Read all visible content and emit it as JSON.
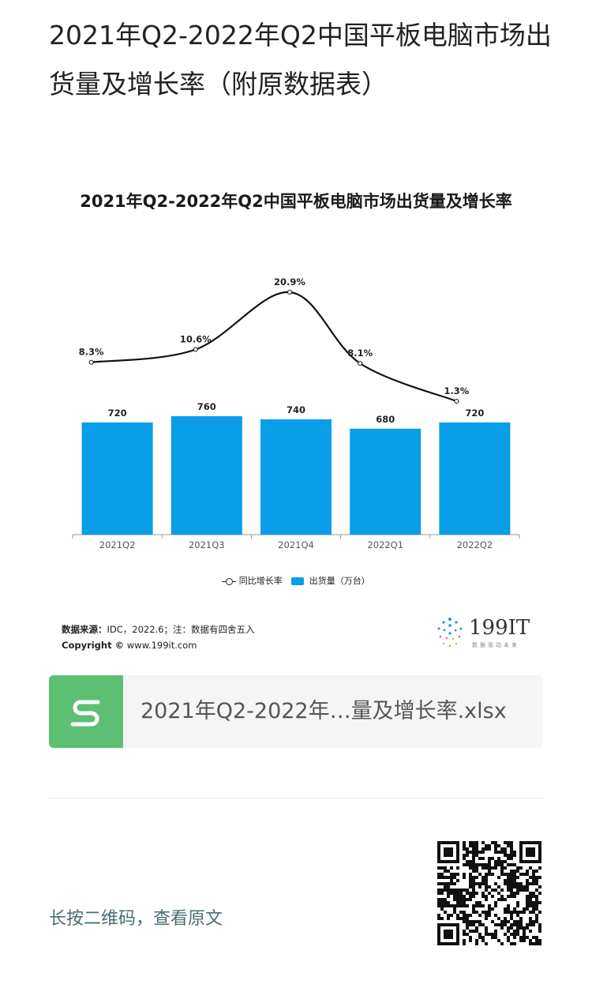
{
  "article": {
    "title": "2021年Q2-2022年Q2中国平板电脑市场出货量及增长率（附原数据表）"
  },
  "chart_data": {
    "type": "bar",
    "title": "2021年Q2-2022年Q2中国平板电脑市场出货量及增长率",
    "categories": [
      "2021Q2",
      "2021Q3",
      "2021Q4",
      "2022Q1",
      "2022Q2"
    ],
    "series": [
      {
        "name": "出货量（万台）",
        "type": "bar",
        "values": [
          720,
          760,
          740,
          680,
          720
        ],
        "labels": [
          "720",
          "760",
          "740",
          "680",
          "720"
        ],
        "color": "#0a9ee8"
      },
      {
        "name": "同比增长率",
        "type": "line",
        "values": [
          8.3,
          10.6,
          20.9,
          8.1,
          1.3
        ],
        "labels": [
          "8.3%",
          "10.6%",
          "20.9%",
          "8.1%",
          "1.3%"
        ],
        "color": "#111111"
      }
    ],
    "legend_position": "bottom-center",
    "grid": false
  },
  "source": {
    "label": "数据来源：",
    "text": "IDC，2022.6；注：数据有四舍五入",
    "copyright_label": "Copyright ©",
    "copyright_site": "www.199it.com"
  },
  "brand": {
    "name": "199IT",
    "tagline": "数据驱动未来"
  },
  "attachment": {
    "file_name": "2021年Q2-2022年…量及增长率.xlsx",
    "icon": "spreadsheet-icon",
    "color": "#5cbf73"
  },
  "footer": {
    "link_text": "长按二维码，查看原文"
  }
}
